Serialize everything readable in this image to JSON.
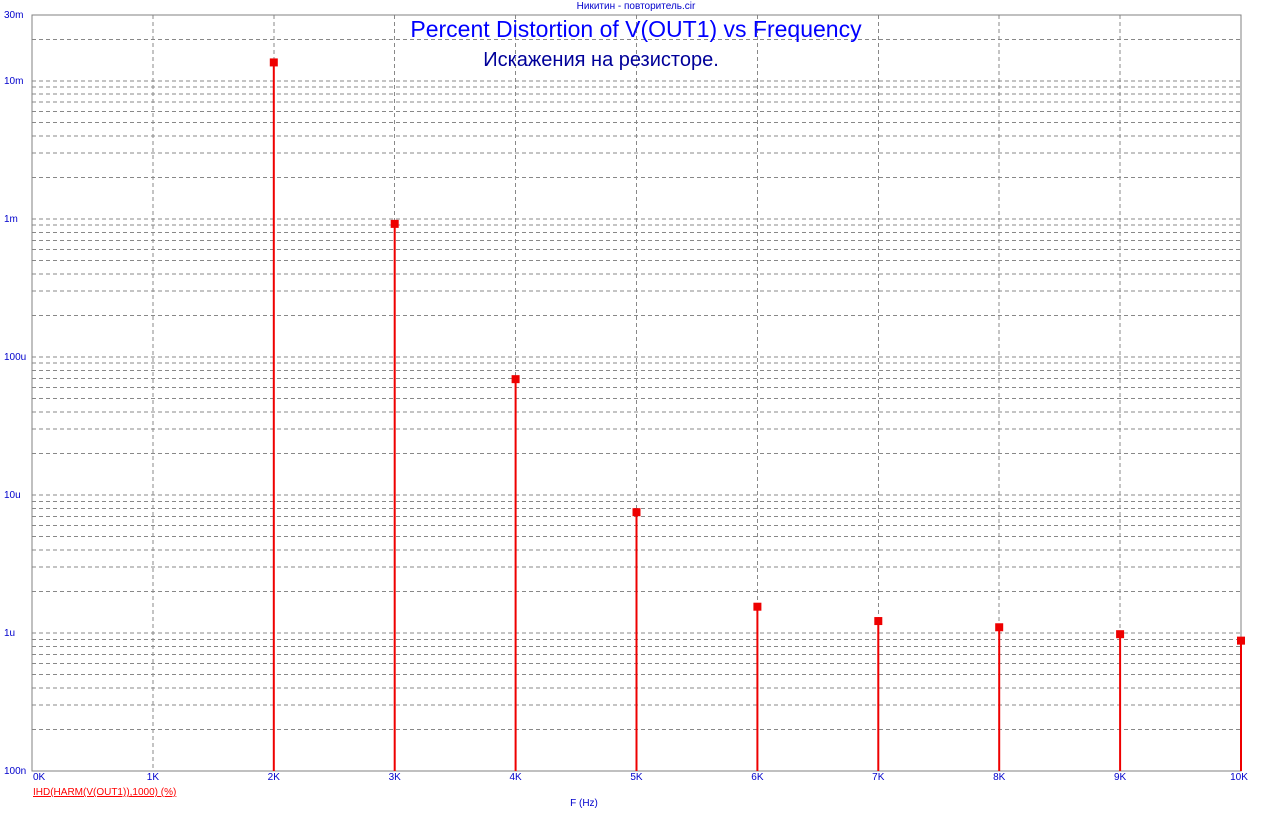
{
  "window": {
    "file_title": "Никитин - повторитель.cir"
  },
  "chart_data": {
    "type": "bar",
    "title": "Percent Distortion of V(OUT1) vs Frequency",
    "subtitle": "Искажения на резисторе.",
    "xlabel": "F (Hz)",
    "ylabel": "",
    "x_scale": "linear",
    "y_scale": "log",
    "xlim": [
      0,
      10000
    ],
    "ylim": [
      1e-07,
      0.03
    ],
    "grid": true,
    "x_ticks": [
      "0K",
      "1K",
      "2K",
      "3K",
      "4K",
      "5K",
      "6K",
      "7K",
      "8K",
      "9K",
      "10K"
    ],
    "y_ticks": [
      {
        "value": 0.03,
        "label": "30m"
      },
      {
        "value": 0.01,
        "label": "10m"
      },
      {
        "value": 0.001,
        "label": "1m"
      },
      {
        "value": 0.0001,
        "label": "100u"
      },
      {
        "value": 1e-05,
        "label": "10u"
      },
      {
        "value": 1e-06,
        "label": "1u"
      },
      {
        "value": 1e-07,
        "label": "100n"
      }
    ],
    "series": [
      {
        "name": "IHD(HARM(V(OUT1)),1000) (%)",
        "color": "#ee0000",
        "x": [
          2000,
          3000,
          4000,
          5000,
          6000,
          7000,
          8000,
          9000,
          10000
        ],
        "values": [
          0.0136,
          0.00092,
          6.9e-05,
          7.5e-06,
          1.55e-06,
          1.22e-06,
          1.1e-06,
          9.8e-07,
          8.8e-07
        ]
      }
    ]
  }
}
